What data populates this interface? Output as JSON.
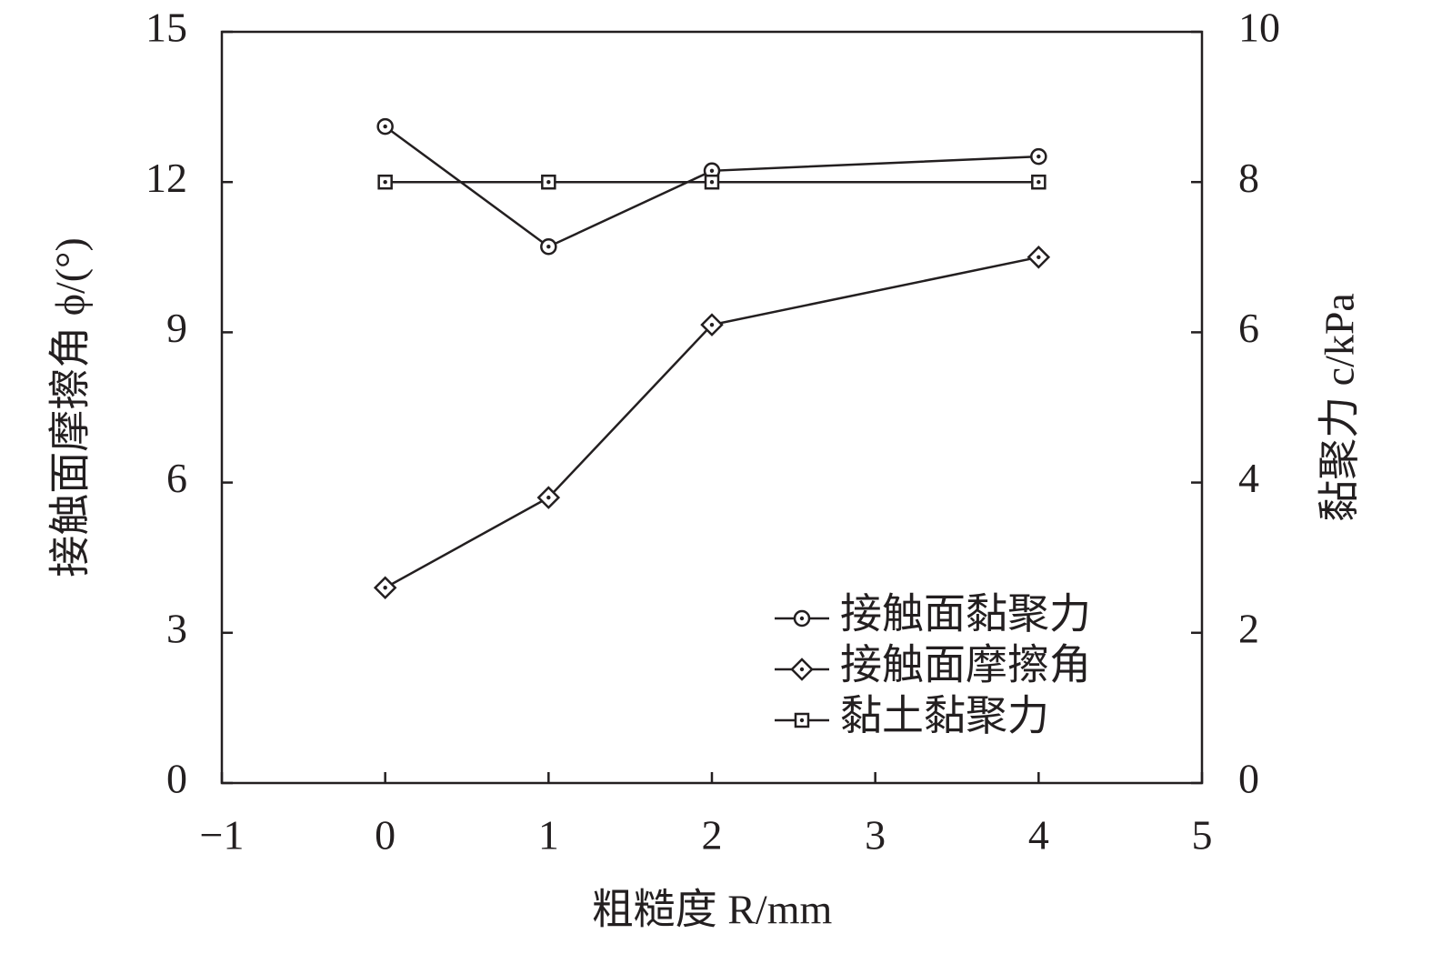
{
  "chart_data": {
    "type": "line",
    "x_label": "粗糙度 R/mm",
    "y_label": "接触面摩擦角 ϕ/(°)",
    "y2_label": "黏聚力 c/kPa",
    "xlim": [
      -1,
      5
    ],
    "xticks": [
      {
        "value": -1,
        "label": "−1"
      },
      0,
      1,
      2,
      3,
      4,
      5
    ],
    "ylim": [
      0,
      15
    ],
    "yticks": [
      0,
      3,
      6,
      9,
      12,
      15
    ],
    "y2lim": [
      0,
      10
    ],
    "y2ticks": [
      0,
      2,
      4,
      6,
      8,
      10
    ],
    "legend": "bottom-right",
    "x": [
      0,
      1,
      2,
      4
    ],
    "series": [
      {
        "name": "接触面黏聚力",
        "color": "#231f20",
        "marker": "circle",
        "axis": "y2",
        "values": [
          8.74,
          7.14,
          8.15,
          8.34
        ]
      },
      {
        "name": "接触面摩擦角",
        "color": "#231f20",
        "marker": "diamond",
        "axis": "y",
        "values": [
          3.9,
          5.7,
          9.15,
          10.5
        ]
      },
      {
        "name": "黏土黏聚力",
        "color": "#231f20",
        "marker": "square",
        "axis": "y2",
        "values": [
          8.0,
          8.0,
          8.0,
          8.0
        ]
      }
    ]
  }
}
